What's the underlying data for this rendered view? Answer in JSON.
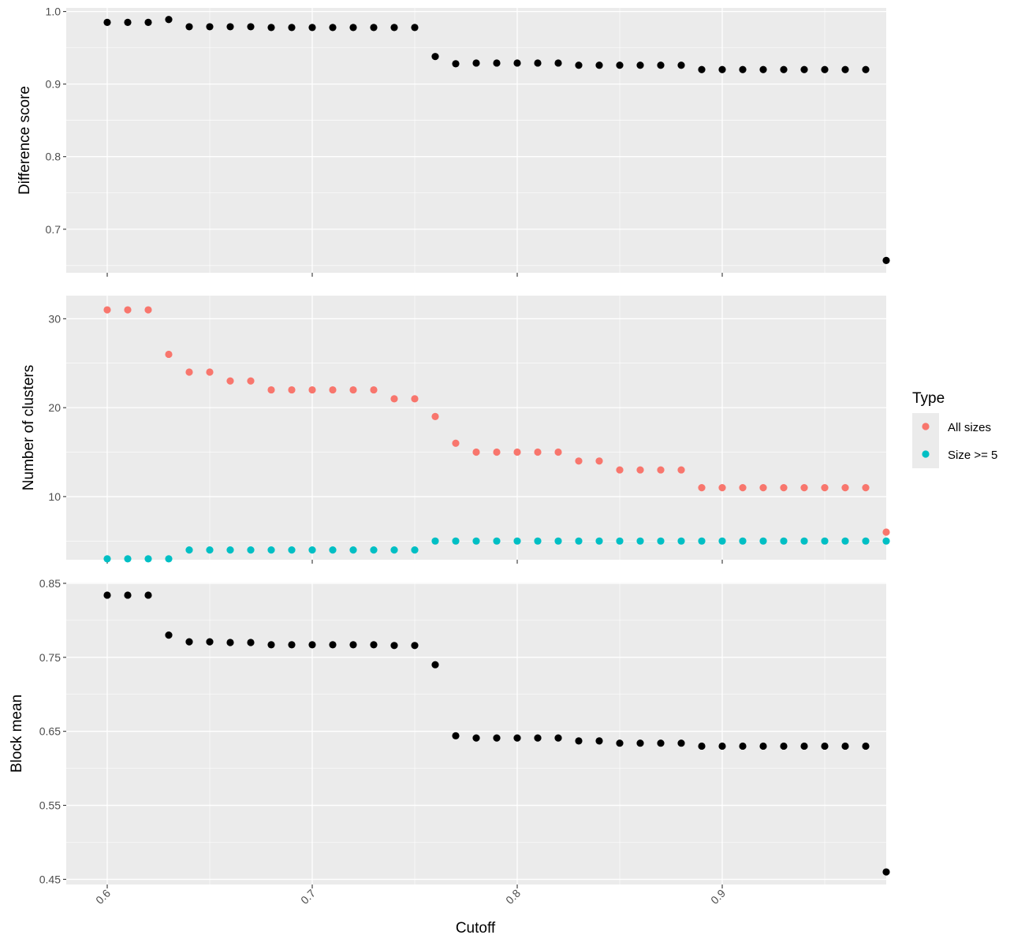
{
  "chart_data": {
    "type": "scatter",
    "xlabel": "Cutoff",
    "x_ticks": [
      0.6,
      0.7,
      0.8,
      0.9
    ],
    "x_tick_labels": [
      "0.6",
      "0.7",
      "0.8",
      "0.9"
    ],
    "xlim": [
      0.58,
      0.98
    ],
    "x": [
      0.6,
      0.61,
      0.62,
      0.63,
      0.64,
      0.65,
      0.66,
      0.67,
      0.68,
      0.69,
      0.7,
      0.71,
      0.72,
      0.73,
      0.74,
      0.75,
      0.76,
      0.77,
      0.78,
      0.79,
      0.8,
      0.81,
      0.82,
      0.83,
      0.84,
      0.85,
      0.86,
      0.87,
      0.88,
      0.89,
      0.9,
      0.91,
      0.92,
      0.93,
      0.94,
      0.95,
      0.96,
      0.97,
      0.98
    ],
    "grid": true,
    "legend": {
      "title": "Type",
      "placement": "right",
      "entries": [
        {
          "label": "All sizes",
          "color": "#F8766D"
        },
        {
          "label": "Size >= 5",
          "color": "#00BFC4"
        }
      ]
    },
    "panels": [
      {
        "ylabel": "Difference score",
        "ylim": [
          0.64,
          1.005
        ],
        "y_ticks": [
          1.0,
          0.9,
          0.8,
          0.7
        ],
        "y_tick_labels": [
          "1.0",
          "0.9",
          "0.8",
          "0.7"
        ],
        "y_minor": [
          0.95,
          0.85,
          0.75,
          0.65
        ],
        "series": [
          {
            "color": "#000000",
            "values": [
              0.985,
              0.985,
              0.985,
              0.989,
              0.979,
              0.979,
              0.979,
              0.979,
              0.978,
              0.978,
              0.978,
              0.978,
              0.978,
              0.978,
              0.978,
              0.978,
              0.938,
              0.928,
              0.929,
              0.929,
              0.929,
              0.929,
              0.929,
              0.926,
              0.926,
              0.926,
              0.926,
              0.926,
              0.926,
              0.92,
              0.92,
              0.92,
              0.92,
              0.92,
              0.92,
              0.92,
              0.92,
              0.92,
              0.657
            ]
          }
        ]
      },
      {
        "ylabel": "Number of clusters",
        "ylim": [
          2.9,
          32.6
        ],
        "y_ticks": [
          30,
          20,
          10
        ],
        "y_tick_labels": [
          "30",
          "20",
          "10"
        ],
        "y_minor": [
          25,
          15,
          5
        ],
        "series": [
          {
            "name": "All sizes",
            "color": "#F8766D",
            "values": [
              31,
              31,
              31,
              26,
              24,
              24,
              23,
              23,
              22,
              22,
              22,
              22,
              22,
              22,
              21,
              21,
              19,
              16,
              15,
              15,
              15,
              15,
              15,
              14,
              14,
              13,
              13,
              13,
              13,
              11,
              11,
              11,
              11,
              11,
              11,
              11,
              11,
              11,
              6
            ]
          },
          {
            "name": "Size >= 5",
            "color": "#00BFC4",
            "values": [
              3,
              3,
              3,
              3,
              4,
              4,
              4,
              4,
              4,
              4,
              4,
              4,
              4,
              4,
              4,
              4,
              5,
              5,
              5,
              5,
              5,
              5,
              5,
              5,
              5,
              5,
              5,
              5,
              5,
              5,
              5,
              5,
              5,
              5,
              5,
              5,
              5,
              5,
              5
            ]
          }
        ]
      },
      {
        "ylabel": "Block mean",
        "ylim": [
          0.443,
          0.851
        ],
        "y_ticks": [
          0.85,
          0.75,
          0.65,
          0.55,
          0.45
        ],
        "y_tick_labels": [
          "0.85",
          "0.75",
          "0.65",
          "0.55",
          "0.45"
        ],
        "y_minor": [
          0.8,
          0.7,
          0.6,
          0.5
        ],
        "series": [
          {
            "color": "#000000",
            "values": [
              0.834,
              0.834,
              0.834,
              0.78,
              0.771,
              0.771,
              0.77,
              0.77,
              0.767,
              0.767,
              0.767,
              0.767,
              0.767,
              0.767,
              0.766,
              0.766,
              0.74,
              0.644,
              0.641,
              0.641,
              0.641,
              0.641,
              0.641,
              0.637,
              0.637,
              0.634,
              0.634,
              0.634,
              0.634,
              0.63,
              0.63,
              0.63,
              0.63,
              0.63,
              0.63,
              0.63,
              0.63,
              0.63,
              0.46
            ]
          }
        ]
      }
    ]
  }
}
